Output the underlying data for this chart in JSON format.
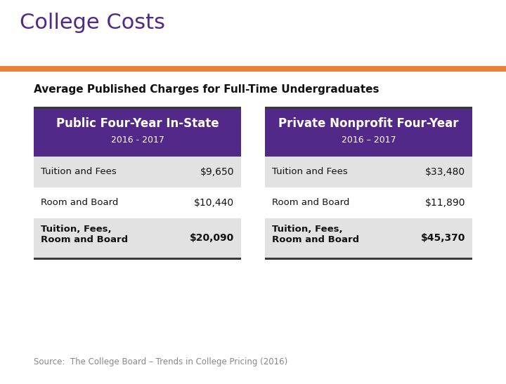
{
  "title": "College Costs",
  "subtitle": "Average Published Charges for Full-Time Undergraduates",
  "source": "Source:  The College Board – Trends in College Pricing (2016)",
  "header_line_color": "#E8823A",
  "bg_color": "#FFFFFF",
  "purple_header": "#522888",
  "table_bg_shaded": "#E2E2E2",
  "table_bg_white": "#FFFFFF",
  "table_border_top": "#444444",
  "table_border_bottom": "#444444",
  "left_table": {
    "header1": "Public Four-Year In-State",
    "header2": "2016 - 2017",
    "rows": [
      {
        "label": "Tuition and Fees",
        "value": "$9,650",
        "bold": false,
        "shaded": true
      },
      {
        "label": "Room and Board",
        "value": "$10,440",
        "bold": false,
        "shaded": false
      },
      {
        "label": "Tuition, Fees,\nRoom and Board",
        "value": "$20,090",
        "bold": true,
        "shaded": true
      }
    ]
  },
  "right_table": {
    "header1": "Private Nonprofit Four-Year",
    "header2": "2016 – 2017",
    "rows": [
      {
        "label": "Tuition and Fees",
        "value": "$33,480",
        "bold": false,
        "shaded": true
      },
      {
        "label": "Room and Board",
        "value": "$11,890",
        "bold": false,
        "shaded": false
      },
      {
        "label": "Tuition, Fees,\nRoom and Board",
        "value": "$45,370",
        "bold": true,
        "shaded": true
      }
    ]
  },
  "fig_w": 7.2,
  "fig_h": 5.47,
  "dpi": 100
}
